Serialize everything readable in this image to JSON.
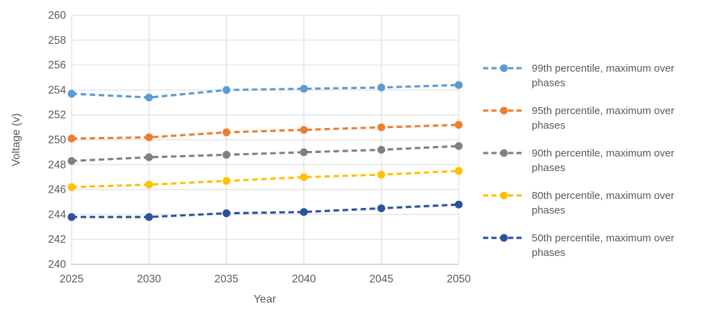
{
  "chart_data": {
    "type": "line",
    "line_style": "dashed",
    "marker": "circle",
    "xlabel": "Year",
    "ylabel": "Voltage (v)",
    "x": [
      2025,
      2030,
      2035,
      2040,
      2045,
      2050
    ],
    "xticks": [
      "2025",
      "2030",
      "2035",
      "2040",
      "2045",
      "2050"
    ],
    "ylim": [
      240,
      260
    ],
    "yticks": [
      240,
      242,
      244,
      246,
      248,
      250,
      252,
      254,
      256,
      258,
      260
    ],
    "grid": true,
    "legend_position": "right",
    "series": [
      {
        "name": "99th percentile, maximum over phases",
        "color": "#5B9BD5",
        "values": [
          253.7,
          253.4,
          254.0,
          254.1,
          254.2,
          254.4
        ]
      },
      {
        "name": "95th percentile, maximum over phases",
        "color": "#ED7D31",
        "values": [
          250.1,
          250.2,
          250.6,
          250.8,
          251.0,
          251.2
        ]
      },
      {
        "name": "90th percentile, maximum over phases",
        "color": "#808080",
        "values": [
          248.3,
          248.6,
          248.8,
          249.0,
          249.2,
          249.5
        ]
      },
      {
        "name": "80th percentile, maximum over phases",
        "color": "#FFC000",
        "values": [
          246.2,
          246.4,
          246.7,
          247.0,
          247.2,
          247.5
        ]
      },
      {
        "name": "50th percentile, maximum over phases",
        "color": "#2D519F",
        "values": [
          243.8,
          243.8,
          244.1,
          244.2,
          244.5,
          244.8
        ]
      }
    ],
    "colors": {
      "background": "#FFFFFF",
      "gridline": "#D9D9D9",
      "axis_line": "#BFBFBF",
      "tick_label": "#595959",
      "axis_title": "#595959",
      "legend_text": "#595959"
    }
  }
}
